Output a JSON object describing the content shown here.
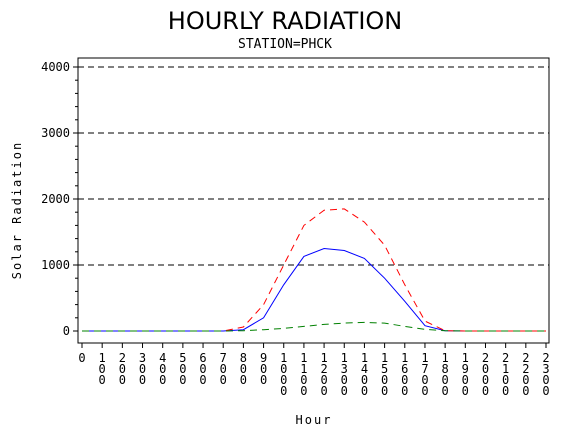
{
  "chart_data": {
    "type": "line",
    "title": "HOURLY RADIATION",
    "subtitle": "STATION=PHCK",
    "xlabel": "Hour",
    "ylabel": "Solar Radiation",
    "ylim": [
      0,
      4000
    ],
    "xlim": [
      0,
      2300
    ],
    "grid": true,
    "y_ticks": [
      "0",
      "1000",
      "2000",
      "3000",
      "4000"
    ],
    "y_tick_values": [
      0,
      1000,
      2000,
      3000,
      4000
    ],
    "x_ticks": [
      "0",
      "100",
      "200",
      "300",
      "400",
      "500",
      "600",
      "700",
      "800",
      "900",
      "1000",
      "1100",
      "1200",
      "1300",
      "1400",
      "1500",
      "1600",
      "1700",
      "1800",
      "1900",
      "2000",
      "2100",
      "2200",
      "2300"
    ],
    "x": [
      0,
      100,
      200,
      300,
      400,
      500,
      600,
      700,
      800,
      900,
      1000,
      1100,
      1200,
      1300,
      1400,
      1500,
      1600,
      1700,
      1800,
      1900,
      2000,
      2100,
      2200,
      2300
    ],
    "series": [
      {
        "color": "#0000ff",
        "style": "solid",
        "values": [
          0,
          0,
          0,
          0,
          0,
          0,
          0,
          0,
          20,
          200,
          700,
          1130,
          1250,
          1220,
          1100,
          800,
          450,
          80,
          5,
          0,
          0,
          0,
          0,
          0
        ]
      },
      {
        "color": "#ff0000",
        "style": "dashed",
        "values": [
          0,
          0,
          0,
          0,
          0,
          0,
          0,
          0,
          60,
          400,
          1000,
          1600,
          1830,
          1850,
          1650,
          1300,
          700,
          150,
          5,
          0,
          0,
          0,
          0,
          0
        ]
      },
      {
        "color": "#008000",
        "style": "dashed",
        "values": [
          0,
          0,
          0,
          0,
          0,
          0,
          0,
          0,
          5,
          20,
          40,
          70,
          100,
          120,
          130,
          120,
          70,
          25,
          5,
          0,
          0,
          0,
          0,
          0
        ]
      }
    ]
  }
}
